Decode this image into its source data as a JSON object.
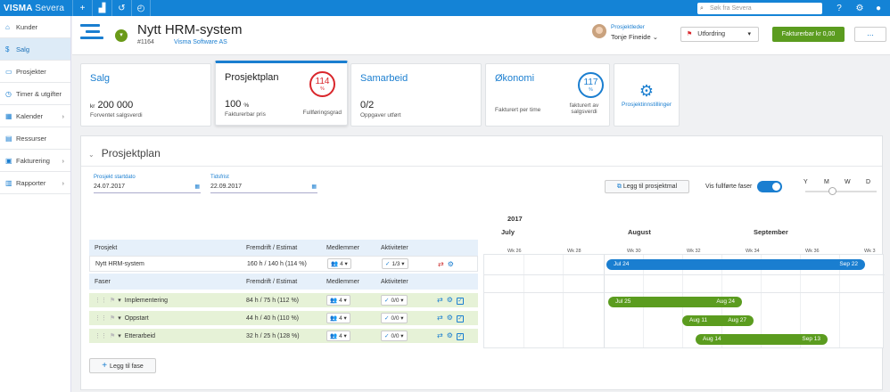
{
  "topbar": {
    "brand": "VISMA",
    "brand_sub": "Severa",
    "search_placeholder": "Søk fra Severa",
    "icons": [
      "plus-icon",
      "chart-add-icon",
      "history-icon",
      "speed-icon"
    ]
  },
  "sidebar": {
    "items": [
      {
        "label": "Kunder",
        "icon": "home-icon",
        "chevron": false
      },
      {
        "label": "Salg",
        "icon": "dollar-icon",
        "chevron": false,
        "active": true
      },
      {
        "label": "Prosjekter",
        "icon": "folder-icon",
        "chevron": false
      },
      {
        "label": "Timer & utgifter",
        "icon": "clock-icon",
        "chevron": false
      },
      {
        "label": "Kalender",
        "icon": "calendar-icon",
        "chevron": true
      },
      {
        "label": "Ressurser",
        "icon": "resources-icon",
        "chevron": false
      },
      {
        "label": "Fakturering",
        "icon": "invoice-icon",
        "chevron": true
      },
      {
        "label": "Rapporter",
        "icon": "report-icon",
        "chevron": true
      }
    ]
  },
  "header": {
    "title": "Nytt HRM-system",
    "number": "#1164",
    "customer": "Visma Software AS",
    "pm_label": "Prosjektleder",
    "pm_name": "Tonje Fineide",
    "challenge_label": "Utfordring",
    "invoice_label": "Fakturerbar kr 0,00",
    "more_label": "..."
  },
  "cards": {
    "salg": {
      "title": "Salg",
      "prefix": "kr",
      "value": "200 000",
      "sub": "Forventet salgsverdi"
    },
    "plan": {
      "title": "Prosjektplan",
      "value": "100",
      "unit": "%",
      "sub": "Fakturerbar pris",
      "circle": "114",
      "circle_unit": "%",
      "circle_sub": "Fullføringsgrad",
      "circle_color": "#d9262b"
    },
    "samarbeid": {
      "title": "Samarbeid",
      "value": "0/2",
      "sub": "Oppgaver utført"
    },
    "okonomi": {
      "title": "Økonomi",
      "sub": "Fakturert per time",
      "circle": "117",
      "circle_unit": "%",
      "circle_sub": "fakturert av salgsverdi",
      "circle_color": "#1a7ed0"
    },
    "settings": {
      "label": "Prosjektinnstillinger"
    }
  },
  "plan": {
    "title": "Prosjektplan",
    "start_label": "Prosjekt startdato",
    "start_value": "24.07.2017",
    "deadline_label": "Tidsfrist",
    "deadline_value": "22.09.2017",
    "add_milestone": "Legg til prosjektmal",
    "show_done": "Vis fullførte faser",
    "zoom": [
      "Y",
      "M",
      "W",
      "D"
    ],
    "year": "2017",
    "months": [
      "July",
      "August",
      "September"
    ],
    "weeks": [
      "Wk 26",
      "Wk 28",
      "Wk 30",
      "Wk 32",
      "Wk 34",
      "Wk 36",
      "Wk 3"
    ],
    "columns": {
      "project": "Prosjekt",
      "phases": "Faser",
      "progress": "Fremdrift / Estimat",
      "members": "Medlemmer",
      "activities": "Aktiviteter"
    },
    "project_row": {
      "name": "Nytt HRM-system",
      "progress": "160 h / 140 h (114 %)",
      "members": "4",
      "activities": "1/3",
      "bar_start": "Jul 24",
      "bar_end": "Sep 22"
    },
    "phases": [
      {
        "name": "Implementering",
        "progress": "84 h / 75 h (112 %)",
        "members": "4",
        "activities": "0/0",
        "bar_start": "Jul 25",
        "bar_end": "Aug 24"
      },
      {
        "name": "Oppstart",
        "progress": "44 h / 40 h (110 %)",
        "members": "4",
        "activities": "0/0",
        "bar_start": "Aug 11",
        "bar_end": "Aug 27"
      },
      {
        "name": "Etterarbeid",
        "progress": "32 h / 25 h (128 %)",
        "members": "4",
        "activities": "0/0",
        "bar_start": "Aug 14",
        "bar_end": "Sep 13"
      }
    ],
    "add_phase": "Legg til fase"
  }
}
